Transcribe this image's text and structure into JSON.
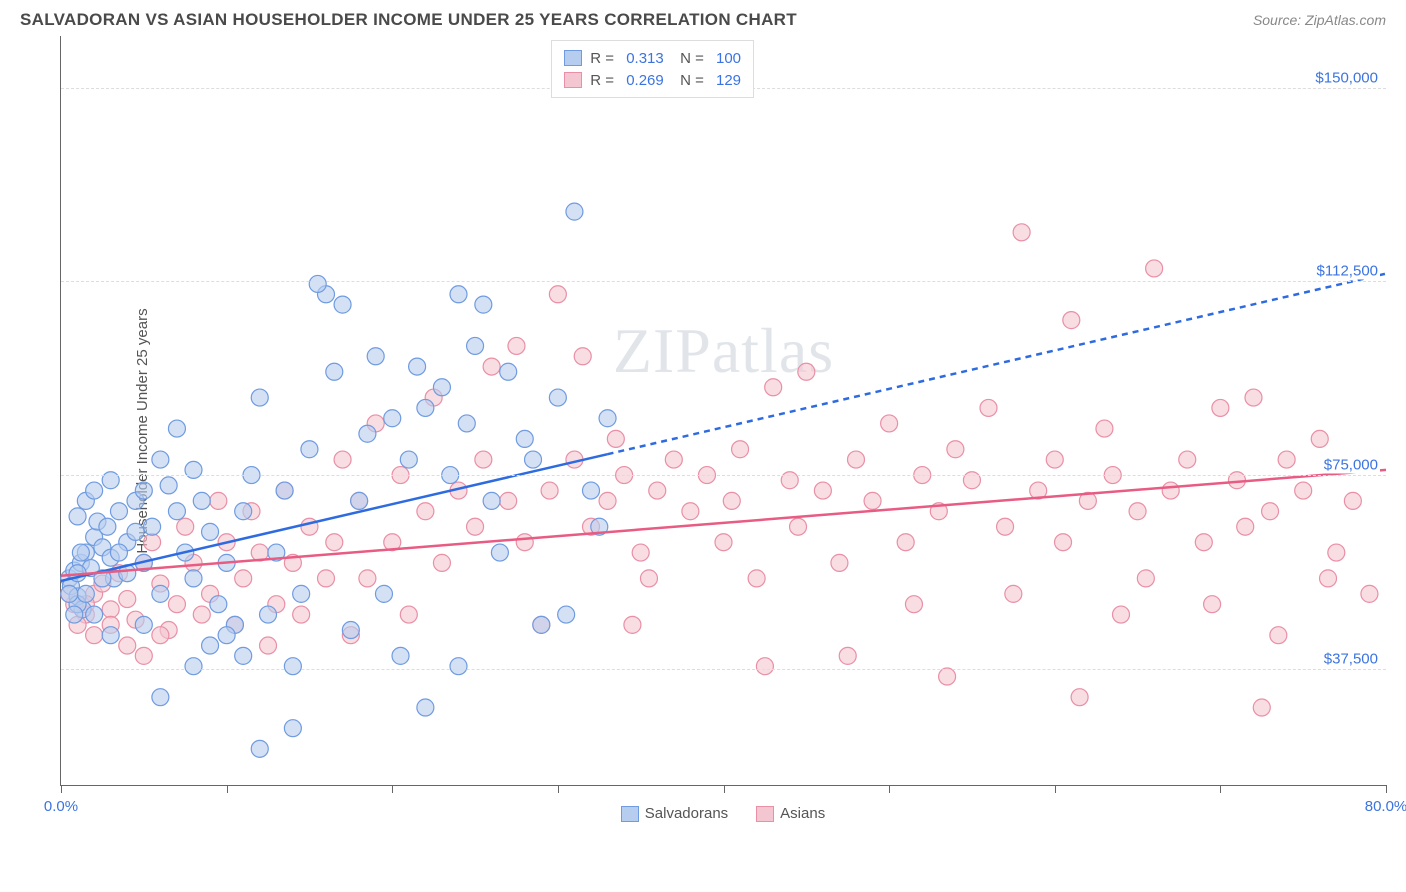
{
  "title": "SALVADORAN VS ASIAN HOUSEHOLDER INCOME UNDER 25 YEARS CORRELATION CHART",
  "source": "Source: ZipAtlas.com",
  "yaxis_label": "Householder Income Under 25 years",
  "watermark": "ZIPatlas",
  "chart": {
    "type": "scatter",
    "background_color": "#ffffff",
    "grid_color": "#dddddd",
    "axis_color": "#666666",
    "tick_label_color": "#3b74e0",
    "xlim": [
      0,
      80
    ],
    "ylim": [
      15000,
      160000
    ],
    "y_gridlines": [
      37500,
      75000,
      112500,
      150000
    ],
    "y_labels": [
      "$37,500",
      "$75,000",
      "$112,500",
      "$150,000"
    ],
    "x_ticks_pct": [
      0,
      10,
      20,
      30,
      40,
      50,
      60,
      70,
      80
    ],
    "x_labels": {
      "start": "0.0%",
      "end": "80.0%"
    },
    "marker_radius": 8.5,
    "marker_opacity": 0.6,
    "series": [
      {
        "id": "salvadorans",
        "label": "Salvadorans",
        "R": "0.313",
        "N": "100",
        "fill": "#b7cdef",
        "stroke": "#6f9be0",
        "line_color": "#2e6be0",
        "line_width": 2.5,
        "trend": {
          "x1": 0,
          "y1": 54500,
          "x2": 80,
          "y2": 114000,
          "solid_until_x": 33
        },
        "points": [
          [
            0.5,
            55000
          ],
          [
            0.8,
            56500
          ],
          [
            0.6,
            53500
          ],
          [
            1.2,
            58000
          ],
          [
            1.0,
            51500
          ],
          [
            1.5,
            60000
          ],
          [
            1.3,
            49000
          ],
          [
            2.0,
            63000
          ],
          [
            1.8,
            57000
          ],
          [
            2.2,
            66000
          ],
          [
            2.5,
            61000
          ],
          [
            1.0,
            67000
          ],
          [
            1.5,
            70000
          ],
          [
            2.8,
            65000
          ],
          [
            3.0,
            59000
          ],
          [
            2.0,
            72000
          ],
          [
            3.5,
            68000
          ],
          [
            3.2,
            55000
          ],
          [
            4.0,
            62000
          ],
          [
            3.0,
            74000
          ],
          [
            4.5,
            70000
          ],
          [
            4.0,
            56000
          ],
          [
            5.0,
            72000
          ],
          [
            5.5,
            65000
          ],
          [
            6.0,
            78000
          ],
          [
            5.0,
            58000
          ],
          [
            6.5,
            73000
          ],
          [
            7.0,
            68000
          ],
          [
            6.0,
            52000
          ],
          [
            7.5,
            60000
          ],
          [
            8.0,
            76000
          ],
          [
            7.0,
            84000
          ],
          [
            8.5,
            70000
          ],
          [
            9.0,
            64000
          ],
          [
            8.0,
            55000
          ],
          [
            9.5,
            50000
          ],
          [
            10.0,
            58000
          ],
          [
            10.5,
            46000
          ],
          [
            9.0,
            42000
          ],
          [
            11.0,
            68000
          ],
          [
            11.5,
            75000
          ],
          [
            12.0,
            90000
          ],
          [
            11.0,
            40000
          ],
          [
            12.5,
            48000
          ],
          [
            13.0,
            60000
          ],
          [
            14.0,
            38000
          ],
          [
            13.5,
            72000
          ],
          [
            15.0,
            80000
          ],
          [
            14.5,
            52000
          ],
          [
            16.0,
            110000
          ],
          [
            15.5,
            112000
          ],
          [
            17.0,
            108000
          ],
          [
            16.5,
            95000
          ],
          [
            18.0,
            70000
          ],
          [
            17.5,
            45000
          ],
          [
            19.0,
            98000
          ],
          [
            18.5,
            83000
          ],
          [
            20.0,
            86000
          ],
          [
            19.5,
            52000
          ],
          [
            21.0,
            78000
          ],
          [
            20.5,
            40000
          ],
          [
            22.0,
            88000
          ],
          [
            21.5,
            96000
          ],
          [
            23.0,
            92000
          ],
          [
            24.0,
            110000
          ],
          [
            23.5,
            75000
          ],
          [
            25.0,
            100000
          ],
          [
            24.5,
            85000
          ],
          [
            26.0,
            70000
          ],
          [
            25.5,
            108000
          ],
          [
            27.0,
            95000
          ],
          [
            26.5,
            60000
          ],
          [
            28.0,
            82000
          ],
          [
            29.0,
            46000
          ],
          [
            28.5,
            78000
          ],
          [
            30.0,
            90000
          ],
          [
            31.0,
            126000
          ],
          [
            30.5,
            48000
          ],
          [
            32.0,
            72000
          ],
          [
            33.0,
            86000
          ],
          [
            32.5,
            65000
          ],
          [
            12.0,
            22000
          ],
          [
            14.0,
            26000
          ],
          [
            22.0,
            30000
          ],
          [
            24.0,
            38000
          ],
          [
            6.0,
            32000
          ],
          [
            8.0,
            38000
          ],
          [
            10.0,
            44000
          ],
          [
            5.0,
            46000
          ],
          [
            3.0,
            44000
          ],
          [
            2.0,
            48000
          ],
          [
            1.0,
            50000
          ],
          [
            1.5,
            52000
          ],
          [
            2.5,
            55000
          ],
          [
            3.5,
            60000
          ],
          [
            4.5,
            64000
          ],
          [
            0.8,
            48000
          ],
          [
            1.2,
            60000
          ],
          [
            0.5,
            52000
          ],
          [
            1.0,
            56000
          ]
        ]
      },
      {
        "id": "asians",
        "label": "Asians",
        "R": "0.269",
        "N": "129",
        "fill": "#f4c6d1",
        "stroke": "#e98fa6",
        "line_color": "#e85b82",
        "line_width": 2.5,
        "trend": {
          "x1": 0,
          "y1": 55500,
          "x2": 80,
          "y2": 76000,
          "solid_until_x": 80
        },
        "points": [
          [
            0.8,
            50000
          ],
          [
            1.5,
            48000
          ],
          [
            2.0,
            52000
          ],
          [
            2.5,
            54000
          ],
          [
            3.0,
            49000
          ],
          [
            3.5,
            56000
          ],
          [
            4.0,
            51000
          ],
          [
            5.0,
            58000
          ],
          [
            4.5,
            47000
          ],
          [
            6.0,
            54000
          ],
          [
            5.5,
            62000
          ],
          [
            7.0,
            50000
          ],
          [
            6.5,
            45000
          ],
          [
            8.0,
            58000
          ],
          [
            7.5,
            65000
          ],
          [
            9.0,
            52000
          ],
          [
            8.5,
            48000
          ],
          [
            10.0,
            62000
          ],
          [
            9.5,
            70000
          ],
          [
            11.0,
            55000
          ],
          [
            10.5,
            46000
          ],
          [
            12.0,
            60000
          ],
          [
            11.5,
            68000
          ],
          [
            13.0,
            50000
          ],
          [
            12.5,
            42000
          ],
          [
            14.0,
            58000
          ],
          [
            13.5,
            72000
          ],
          [
            15.0,
            65000
          ],
          [
            14.5,
            48000
          ],
          [
            16.0,
            55000
          ],
          [
            17.0,
            78000
          ],
          [
            16.5,
            62000
          ],
          [
            18.0,
            70000
          ],
          [
            19.0,
            85000
          ],
          [
            18.5,
            55000
          ],
          [
            20.0,
            62000
          ],
          [
            21.0,
            48000
          ],
          [
            20.5,
            75000
          ],
          [
            22.0,
            68000
          ],
          [
            23.0,
            58000
          ],
          [
            22.5,
            90000
          ],
          [
            24.0,
            72000
          ],
          [
            25.0,
            65000
          ],
          [
            26.0,
            96000
          ],
          [
            25.5,
            78000
          ],
          [
            27.0,
            70000
          ],
          [
            28.0,
            62000
          ],
          [
            27.5,
            100000
          ],
          [
            29.0,
            46000
          ],
          [
            30.0,
            110000
          ],
          [
            29.5,
            72000
          ],
          [
            31.0,
            78000
          ],
          [
            32.0,
            65000
          ],
          [
            31.5,
            98000
          ],
          [
            33.0,
            70000
          ],
          [
            34.0,
            75000
          ],
          [
            33.5,
            82000
          ],
          [
            35.0,
            60000
          ],
          [
            36.0,
            72000
          ],
          [
            35.5,
            55000
          ],
          [
            37.0,
            78000
          ],
          [
            38.0,
            68000
          ],
          [
            39.0,
            75000
          ],
          [
            40.0,
            62000
          ],
          [
            41.0,
            80000
          ],
          [
            40.5,
            70000
          ],
          [
            42.0,
            55000
          ],
          [
            43.0,
            92000
          ],
          [
            42.5,
            38000
          ],
          [
            44.0,
            74000
          ],
          [
            45.0,
            95000
          ],
          [
            44.5,
            65000
          ],
          [
            46.0,
            72000
          ],
          [
            47.0,
            58000
          ],
          [
            48.0,
            78000
          ],
          [
            47.5,
            40000
          ],
          [
            49.0,
            70000
          ],
          [
            50.0,
            85000
          ],
          [
            51.0,
            62000
          ],
          [
            52.0,
            75000
          ],
          [
            51.5,
            50000
          ],
          [
            53.0,
            68000
          ],
          [
            54.0,
            80000
          ],
          [
            53.5,
            36000
          ],
          [
            55.0,
            74000
          ],
          [
            56.0,
            88000
          ],
          [
            57.0,
            65000
          ],
          [
            58.0,
            122000
          ],
          [
            57.5,
            52000
          ],
          [
            59.0,
            72000
          ],
          [
            60.0,
            78000
          ],
          [
            61.0,
            105000
          ],
          [
            60.5,
            62000
          ],
          [
            62.0,
            70000
          ],
          [
            63.0,
            84000
          ],
          [
            64.0,
            48000
          ],
          [
            63.5,
            75000
          ],
          [
            65.0,
            68000
          ],
          [
            66.0,
            115000
          ],
          [
            65.5,
            55000
          ],
          [
            67.0,
            72000
          ],
          [
            68.0,
            78000
          ],
          [
            69.0,
            62000
          ],
          [
            70.0,
            88000
          ],
          [
            69.5,
            50000
          ],
          [
            71.0,
            74000
          ],
          [
            72.0,
            90000
          ],
          [
            71.5,
            65000
          ],
          [
            73.0,
            68000
          ],
          [
            74.0,
            78000
          ],
          [
            73.5,
            44000
          ],
          [
            75.0,
            72000
          ],
          [
            76.0,
            82000
          ],
          [
            77.0,
            60000
          ],
          [
            76.5,
            55000
          ],
          [
            78.0,
            70000
          ],
          [
            79.0,
            52000
          ],
          [
            61.5,
            32000
          ],
          [
            72.5,
            30000
          ],
          [
            2.0,
            44000
          ],
          [
            3.0,
            46000
          ],
          [
            4.0,
            42000
          ],
          [
            5.0,
            40000
          ],
          [
            6.0,
            44000
          ],
          [
            1.0,
            46000
          ],
          [
            1.5,
            50000
          ],
          [
            0.5,
            52000
          ],
          [
            34.5,
            46000
          ],
          [
            17.5,
            44000
          ]
        ]
      }
    ]
  }
}
